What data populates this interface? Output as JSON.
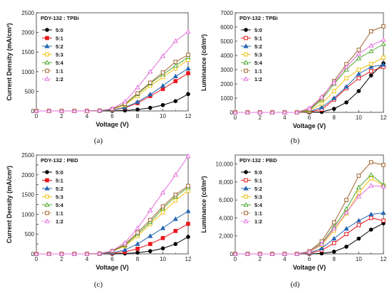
{
  "chart_data": [
    {
      "type": "line",
      "panel": "(a)",
      "title": "PDY-132 : TPBi",
      "xlabel": "Voltage (V)",
      "ylabel": "Current Density (mA/cm²)",
      "xlim": [
        0,
        12
      ],
      "ylim": [
        0,
        2500
      ],
      "xticks": [
        0,
        2,
        4,
        6,
        8,
        10,
        12
      ],
      "yticks": [
        0,
        500,
        1000,
        1500,
        2000,
        2500
      ],
      "ytick_labels": [
        "0",
        "500",
        "1000",
        "1500",
        "2000",
        "2500"
      ],
      "x": [
        0,
        1,
        2,
        3,
        4,
        5,
        6,
        7,
        8,
        9,
        10,
        11,
        12
      ],
      "series": [
        {
          "name": "5:0",
          "color": "#000000",
          "marker": "circle",
          "fill": true,
          "values": [
            0,
            0,
            0,
            0,
            0,
            0,
            3,
            12,
            35,
            80,
            150,
            250,
            430
          ]
        },
        {
          "name": "5:1",
          "color": "#e8161b",
          "marker": "square",
          "fill": true,
          "values": [
            0,
            0,
            0,
            0,
            0,
            5,
            20,
            80,
            200,
            380,
            560,
            760,
            960
          ]
        },
        {
          "name": "5:2",
          "color": "#2767b3",
          "marker": "triangle",
          "fill": true,
          "values": [
            0,
            0,
            0,
            0,
            0,
            5,
            25,
            90,
            230,
            420,
            640,
            880,
            1080
          ]
        },
        {
          "name": "5:3",
          "color": "#f2c10f",
          "marker": "square",
          "fill": false,
          "values": [
            0,
            0,
            0,
            0,
            0,
            8,
            40,
            150,
            380,
            640,
            860,
            1080,
            1300
          ]
        },
        {
          "name": "5:4",
          "color": "#4ea72e",
          "marker": "triangle",
          "fill": false,
          "values": [
            0,
            0,
            0,
            0,
            0,
            8,
            45,
            170,
            430,
            700,
            930,
            1150,
            1370
          ]
        },
        {
          "name": "1:1",
          "color": "#a0632e",
          "marker": "square",
          "fill": false,
          "values": [
            0,
            0,
            0,
            0,
            0,
            8,
            50,
            180,
            450,
            720,
            980,
            1250,
            1430
          ]
        },
        {
          "name": "1:2",
          "color": "#e36ddc",
          "marker": "triangle",
          "fill": false,
          "values": [
            0,
            0,
            0,
            0,
            0,
            10,
            60,
            240,
            600,
            1000,
            1400,
            1780,
            2020
          ]
        }
      ]
    },
    {
      "type": "line",
      "panel": "(b)",
      "title": "PDY-132 : TPBi",
      "xlabel": "Voltage (V)",
      "ylabel": "Luminance (cd/m²)",
      "xlim": [
        0,
        12
      ],
      "ylim": [
        0,
        7000
      ],
      "xticks": [
        0,
        2,
        4,
        6,
        8,
        10,
        12
      ],
      "yticks": [
        0,
        1000,
        2000,
        3000,
        4000,
        5000,
        6000,
        7000
      ],
      "ytick_labels": [
        "0",
        "1000",
        "2000",
        "3000",
        "4000",
        "5000",
        "6000",
        "7000"
      ],
      "x": [
        0,
        1,
        2,
        3,
        4,
        5,
        6,
        7,
        8,
        9,
        10,
        11,
        12
      ],
      "series": [
        {
          "name": "5:0",
          "color": "#000000",
          "marker": "circle",
          "fill": true,
          "values": [
            0,
            0,
            0,
            0,
            0,
            0,
            0,
            30,
            250,
            700,
            1500,
            2600,
            3450
          ]
        },
        {
          "name": "5:1",
          "color": "#e8161b",
          "marker": "square",
          "fill": false,
          "values": [
            0,
            0,
            0,
            0,
            0,
            0,
            20,
            200,
            900,
            1700,
            2400,
            2900,
            3200
          ]
        },
        {
          "name": "5:2",
          "color": "#2767b3",
          "marker": "triangle",
          "fill": true,
          "values": [
            0,
            0,
            0,
            0,
            0,
            0,
            50,
            350,
            1000,
            1800,
            2700,
            3200,
            3350
          ]
        },
        {
          "name": "5:3",
          "color": "#f2c10f",
          "marker": "square",
          "fill": false,
          "values": [
            0,
            0,
            0,
            0,
            0,
            0,
            100,
            600,
            1500,
            2400,
            3000,
            3400,
            3850
          ]
        },
        {
          "name": "5:4",
          "color": "#4ea72e",
          "marker": "triangle",
          "fill": false,
          "values": [
            0,
            0,
            0,
            0,
            0,
            0,
            150,
            900,
            2000,
            3000,
            3800,
            4300,
            4800
          ]
        },
        {
          "name": "1:1",
          "color": "#a0632e",
          "marker": "square",
          "fill": false,
          "values": [
            0,
            0,
            0,
            0,
            0,
            0,
            200,
            1000,
            2200,
            3400,
            4400,
            5700,
            6050
          ]
        },
        {
          "name": "1:2",
          "color": "#e36ddc",
          "marker": "triangle",
          "fill": false,
          "values": [
            0,
            0,
            0,
            0,
            0,
            0,
            300,
            1100,
            2100,
            3200,
            4100,
            4700,
            5100
          ]
        }
      ]
    },
    {
      "type": "line",
      "panel": "(c)",
      "title": "PDY-132 : PBD",
      "xlabel": "Voltage (V)",
      "ylabel": "Current Density (mA/cm²)",
      "xlim": [
        0,
        12
      ],
      "ylim": [
        0,
        2500
      ],
      "xticks": [
        0,
        2,
        4,
        6,
        8,
        10,
        12
      ],
      "yticks": [
        0,
        250,
        500,
        750,
        1000,
        1250,
        1500,
        1750,
        2000,
        2250,
        2500
      ],
      "ytick_labels": [
        "0",
        "",
        "500",
        "",
        "1000",
        "",
        "1500",
        "",
        "2000",
        "",
        "2500"
      ],
      "x": [
        0,
        1,
        2,
        3,
        4,
        5,
        6,
        7,
        8,
        9,
        10,
        11,
        12
      ],
      "series": [
        {
          "name": "5:0",
          "color": "#000000",
          "marker": "circle",
          "fill": true,
          "values": [
            0,
            0,
            0,
            0,
            0,
            0,
            3,
            10,
            30,
            70,
            140,
            250,
            430
          ]
        },
        {
          "name": "5:1",
          "color": "#e8161b",
          "marker": "square",
          "fill": true,
          "values": [
            0,
            0,
            0,
            0,
            0,
            3,
            15,
            50,
            130,
            250,
            400,
            580,
            760
          ]
        },
        {
          "name": "5:2",
          "color": "#2767b3",
          "marker": "triangle",
          "fill": true,
          "values": [
            0,
            0,
            0,
            0,
            0,
            5,
            30,
            100,
            250,
            450,
            650,
            880,
            1080
          ]
        },
        {
          "name": "5:3",
          "color": "#f2c10f",
          "marker": "square",
          "fill": false,
          "values": [
            0,
            0,
            0,
            0,
            0,
            10,
            60,
            200,
            450,
            750,
            1050,
            1350,
            1600
          ]
        },
        {
          "name": "5:4",
          "color": "#4ea72e",
          "marker": "triangle",
          "fill": false,
          "values": [
            0,
            0,
            0,
            0,
            0,
            10,
            60,
            220,
            500,
            800,
            1150,
            1450,
            1680
          ]
        },
        {
          "name": "1:1",
          "color": "#a0632e",
          "marker": "square",
          "fill": false,
          "values": [
            0,
            0,
            0,
            0,
            0,
            10,
            70,
            240,
            540,
            860,
            1200,
            1500,
            1720
          ]
        },
        {
          "name": "1:2",
          "color": "#e36ddc",
          "marker": "triangle",
          "fill": false,
          "values": [
            0,
            0,
            0,
            0,
            0,
            12,
            80,
            280,
            650,
            1100,
            1550,
            2000,
            2470
          ]
        }
      ]
    },
    {
      "type": "line",
      "panel": "(d)",
      "title": "PDY-132 : PBD",
      "xlabel": "Voltage (V)",
      "ylabel": "Luminance (cd/m²)",
      "xlim": [
        0,
        12
      ],
      "ylim": [
        0,
        11000
      ],
      "xticks": [
        0,
        2,
        4,
        6,
        8,
        10,
        12
      ],
      "yticks": [
        0,
        2000,
        4000,
        6000,
        8000,
        10000
      ],
      "ytick_labels": [
        "0",
        "2,000",
        "4,000",
        "6,000",
        "8,000",
        "10,000"
      ],
      "x": [
        0,
        1,
        2,
        3,
        4,
        5,
        6,
        7,
        8,
        9,
        10,
        11,
        12
      ],
      "series": [
        {
          "name": "5:0",
          "color": "#000000",
          "marker": "circle",
          "fill": true,
          "values": [
            0,
            0,
            0,
            0,
            0,
            0,
            0,
            50,
            250,
            800,
            1700,
            2700,
            3400
          ]
        },
        {
          "name": "5:1",
          "color": "#e8161b",
          "marker": "square",
          "fill": false,
          "values": [
            0,
            0,
            0,
            0,
            0,
            0,
            50,
            400,
            1200,
            2200,
            3200,
            4000,
            3700
          ]
        },
        {
          "name": "5:2",
          "color": "#2767b3",
          "marker": "triangle",
          "fill": true,
          "values": [
            0,
            0,
            0,
            0,
            0,
            0,
            100,
            600,
            1700,
            2800,
            3700,
            4400,
            4550
          ]
        },
        {
          "name": "5:3",
          "color": "#f2c10f",
          "marker": "square",
          "fill": false,
          "values": [
            0,
            0,
            0,
            0,
            0,
            0,
            200,
            1000,
            2600,
            4500,
            6800,
            8400,
            7600
          ]
        },
        {
          "name": "5:4",
          "color": "#4ea72e",
          "marker": "triangle",
          "fill": false,
          "values": [
            0,
            0,
            0,
            0,
            0,
            0,
            250,
            1200,
            3000,
            5000,
            7400,
            8800,
            7700
          ]
        },
        {
          "name": "1:1",
          "color": "#a0632e",
          "marker": "square",
          "fill": false,
          "values": [
            0,
            0,
            0,
            0,
            0,
            0,
            300,
            1400,
            3500,
            6000,
            8700,
            10200,
            9900
          ]
        },
        {
          "name": "1:2",
          "color": "#e36ddc",
          "marker": "triangle",
          "fill": false,
          "values": [
            0,
            0,
            0,
            0,
            0,
            0,
            250,
            1100,
            2800,
            4600,
            6400,
            7600,
            7500
          ]
        }
      ]
    }
  ]
}
